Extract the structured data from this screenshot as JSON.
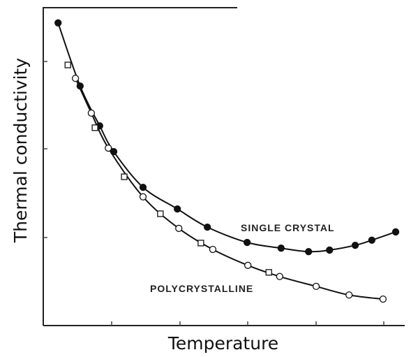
{
  "chart_data": {
    "type": "scatter",
    "xlabel": "Temperature",
    "ylabel": "Thermal conductivity",
    "xlim": [
      0,
      100
    ],
    "ylim": [
      0,
      100
    ],
    "color": "#111111",
    "series": [
      {
        "name": "SINGLE CRYSTAL",
        "marker": "filled-circle",
        "curve": true,
        "x": [
          4.1,
          10.2,
          15.6,
          19.5,
          27.6,
          37.1,
          45.4,
          56.4,
          65.8,
          73.4,
          79.2,
          86.3,
          90.9,
          97.5
        ],
        "values": [
          95.0,
          75.2,
          62.7,
          54.6,
          43.4,
          36.6,
          30.9,
          26.1,
          24.3,
          23.2,
          23.7,
          25.2,
          26.8,
          29.4
        ]
      },
      {
        "name": "POLYCRYSTALLINE",
        "marker": "open-circle",
        "curve": true,
        "x": [
          8.9,
          13.3,
          18.0,
          27.6,
          37.5,
          46.9,
          56.6,
          65.4,
          75.5,
          84.6,
          94.0
        ],
        "values": [
          77.6,
          66.7,
          55.7,
          40.4,
          30.5,
          23.9,
          18.9,
          15.4,
          12.3,
          9.6,
          8.3
        ]
      },
      {
        "marker": "open-square",
        "curve": false,
        "x": [
          6.8,
          14.3,
          22.4,
          32.4,
          43.6,
          62.4
        ],
        "values": [
          81.8,
          62.1,
          46.7,
          35.1,
          25.9,
          16.7
        ]
      }
    ]
  }
}
